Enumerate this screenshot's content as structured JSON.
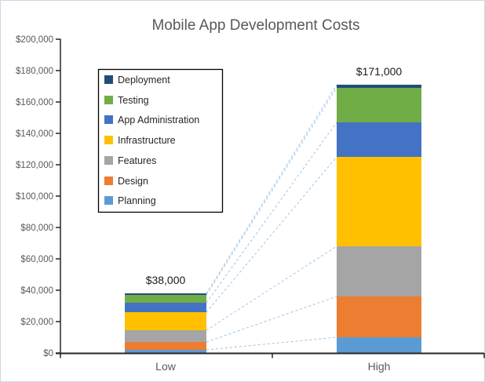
{
  "chart_data": {
    "type": "bar",
    "stacked": true,
    "title": "Mobile App Development Costs",
    "categories": [
      "Low",
      "High"
    ],
    "series": [
      {
        "name": "Planning",
        "color": "#5B9BD5",
        "values": [
          2000,
          10000
        ]
      },
      {
        "name": "Design",
        "color": "#ED7D31",
        "values": [
          5000,
          26000
        ]
      },
      {
        "name": "Features",
        "color": "#A5A5A5",
        "values": [
          7500,
          32000
        ]
      },
      {
        "name": "Infrastructure",
        "color": "#FFC000",
        "values": [
          11500,
          57000
        ]
      },
      {
        "name": "App Administration",
        "color": "#4472C4",
        "values": [
          6000,
          22000
        ]
      },
      {
        "name": "Testing",
        "color": "#70AD47",
        "values": [
          5000,
          22000
        ]
      },
      {
        "name": "Deployment",
        "color": "#1F4E79",
        "values": [
          1000,
          2000
        ]
      }
    ],
    "totals": [
      38000,
      171000
    ],
    "data_labels": [
      "$38,000",
      "$171,000"
    ],
    "y_axis": {
      "min": 0,
      "max": 200000,
      "step": 20000,
      "tick_labels": [
        "$0",
        "$20,000",
        "$40,000",
        "$60,000",
        "$80,000",
        "$100,000",
        "$120,000",
        "$140,000",
        "$160,000",
        "$180,000",
        "$200,000"
      ]
    },
    "legend": {
      "position": "top-left-inside",
      "items": [
        {
          "label": "Deployment",
          "color": "#1F4E79"
        },
        {
          "label": "Testing",
          "color": "#70AD47"
        },
        {
          "label": "App Administration",
          "color": "#4472C4"
        },
        {
          "label": "Infrastructure",
          "color": "#FFC000"
        },
        {
          "label": "Features",
          "color": "#A5A5A5"
        },
        {
          "label": "Design",
          "color": "#ED7D31"
        },
        {
          "label": "Planning",
          "color": "#5B9BD5"
        }
      ]
    },
    "series_lines": {
      "shown": true,
      "style": "dashed",
      "color": "#9DC3E6"
    },
    "colors": {
      "title": "#595959",
      "axis_line": "#262626",
      "axis_labels": "#595959",
      "data_labels": "#1a1a1a",
      "legend_text": "#262626",
      "legend_border": "#000000",
      "chart_border": "#cdd8e3",
      "background": "#ffffff"
    },
    "grid": false
  }
}
